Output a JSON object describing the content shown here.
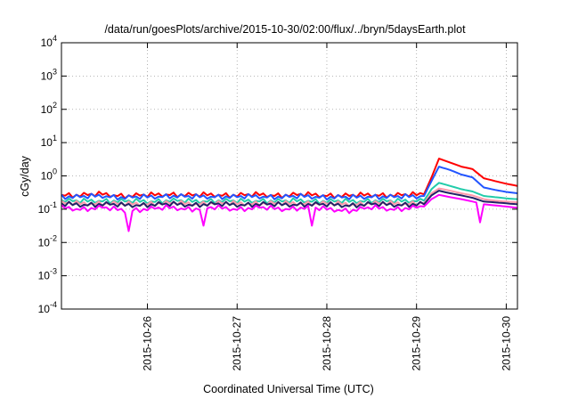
{
  "chart_data": {
    "type": "line",
    "title": "/data/run/goesPlots/archive/2015-10-30/02:00/flux/../bryn/5daysEarth.plot",
    "xlabel": "Coordinated Universal Time (UTC)",
    "ylabel": "cGy/day",
    "yscale": "log",
    "ylim": [
      0.0001,
      10000
    ],
    "xlim": [
      "2015-10-25 01:00",
      "2015-10-30 03:00"
    ],
    "x_ticks": [
      "2015-10-26",
      "2015-10-27",
      "2015-10-28",
      "2015-10-29",
      "2015-10-30"
    ],
    "y_ticks": [
      {
        "value": 0.0001,
        "base": "10",
        "exp": "-4"
      },
      {
        "value": 0.001,
        "base": "10",
        "exp": "-3"
      },
      {
        "value": 0.01,
        "base": "10",
        "exp": "-2"
      },
      {
        "value": 0.1,
        "base": "10",
        "exp": "-1"
      },
      {
        "value": 1,
        "base": "10",
        "exp": "0"
      },
      {
        "value": 10,
        "base": "10",
        "exp": "1"
      },
      {
        "value": 100,
        "base": "10",
        "exp": "2"
      },
      {
        "value": 1000,
        "base": "10",
        "exp": "3"
      },
      {
        "value": 10000,
        "base": "10",
        "exp": "4"
      }
    ],
    "grid": true,
    "legend": "none",
    "x": [
      "2015-10-25 01:00",
      "2015-10-25 06:00",
      "2015-10-25 12:00",
      "2015-10-25 18:00",
      "2015-10-26 00:00",
      "2015-10-26 06:00",
      "2015-10-26 12:00",
      "2015-10-26 18:00",
      "2015-10-27 00:00",
      "2015-10-27 06:00",
      "2015-10-27 12:00",
      "2015-10-27 18:00",
      "2015-10-28 00:00",
      "2015-10-28 06:00",
      "2015-10-28 12:00",
      "2015-10-28 18:00",
      "2015-10-29 00:00",
      "2015-10-29 02:00",
      "2015-10-29 04:00",
      "2015-10-29 06:00",
      "2015-10-29 09:00",
      "2015-10-29 12:00",
      "2015-10-29 15:00",
      "2015-10-29 18:00",
      "2015-10-29 21:00",
      "2015-10-30 00:00",
      "2015-10-30 03:00"
    ],
    "series": [
      {
        "color": "#ff0000",
        "values": [
          0.27,
          0.26,
          0.28,
          0.25,
          0.26,
          0.28,
          0.26,
          0.27,
          0.26,
          0.27,
          0.26,
          0.27,
          0.26,
          0.25,
          0.27,
          0.26,
          0.27,
          0.28,
          0.9,
          3.3,
          2.5,
          1.9,
          1.6,
          0.85,
          0.7,
          0.58,
          0.5
        ]
      },
      {
        "color": "#2255ff",
        "values": [
          0.24,
          0.23,
          0.25,
          0.22,
          0.23,
          0.25,
          0.23,
          0.24,
          0.23,
          0.24,
          0.23,
          0.24,
          0.23,
          0.22,
          0.24,
          0.23,
          0.24,
          0.25,
          0.7,
          1.9,
          1.5,
          1.1,
          0.9,
          0.45,
          0.38,
          0.33,
          0.3
        ]
      },
      {
        "color": "#22ccaa",
        "values": [
          0.18,
          0.17,
          0.18,
          0.17,
          0.17,
          0.18,
          0.17,
          0.18,
          0.17,
          0.18,
          0.17,
          0.18,
          0.17,
          0.17,
          0.18,
          0.17,
          0.18,
          0.18,
          0.4,
          0.62,
          0.5,
          0.4,
          0.34,
          0.25,
          0.23,
          0.21,
          0.2
        ]
      },
      {
        "color": "#ff99aa",
        "values": [
          0.15,
          0.145,
          0.15,
          0.14,
          0.145,
          0.15,
          0.145,
          0.15,
          0.145,
          0.15,
          0.145,
          0.15,
          0.145,
          0.14,
          0.15,
          0.145,
          0.15,
          0.15,
          0.3,
          0.42,
          0.36,
          0.3,
          0.26,
          0.2,
          0.18,
          0.17,
          0.16
        ]
      },
      {
        "color": "#222266",
        "values": [
          0.14,
          0.135,
          0.14,
          0.13,
          0.135,
          0.14,
          0.135,
          0.14,
          0.135,
          0.14,
          0.135,
          0.14,
          0.135,
          0.13,
          0.14,
          0.135,
          0.14,
          0.14,
          0.26,
          0.36,
          0.3,
          0.26,
          0.22,
          0.17,
          0.16,
          0.15,
          0.14
        ]
      },
      {
        "color": "#ff00ff",
        "values": [
          0.11,
          0.1,
          0.11,
          0.09,
          0.1,
          0.11,
          0.1,
          0.11,
          0.1,
          0.11,
          0.1,
          0.11,
          0.1,
          0.09,
          0.11,
          0.1,
          0.11,
          0.12,
          0.2,
          0.27,
          0.23,
          0.2,
          0.17,
          0.14,
          0.13,
          0.12,
          0.11
        ]
      }
    ],
    "dips": [
      {
        "x": "2015-10-25 19:00",
        "value": 0.022
      },
      {
        "x": "2015-10-26 15:00",
        "value": 0.032
      },
      {
        "x": "2015-10-27 20:00",
        "value": 0.032
      },
      {
        "x": "2015-10-29 17:00",
        "value": 0.04
      }
    ]
  }
}
